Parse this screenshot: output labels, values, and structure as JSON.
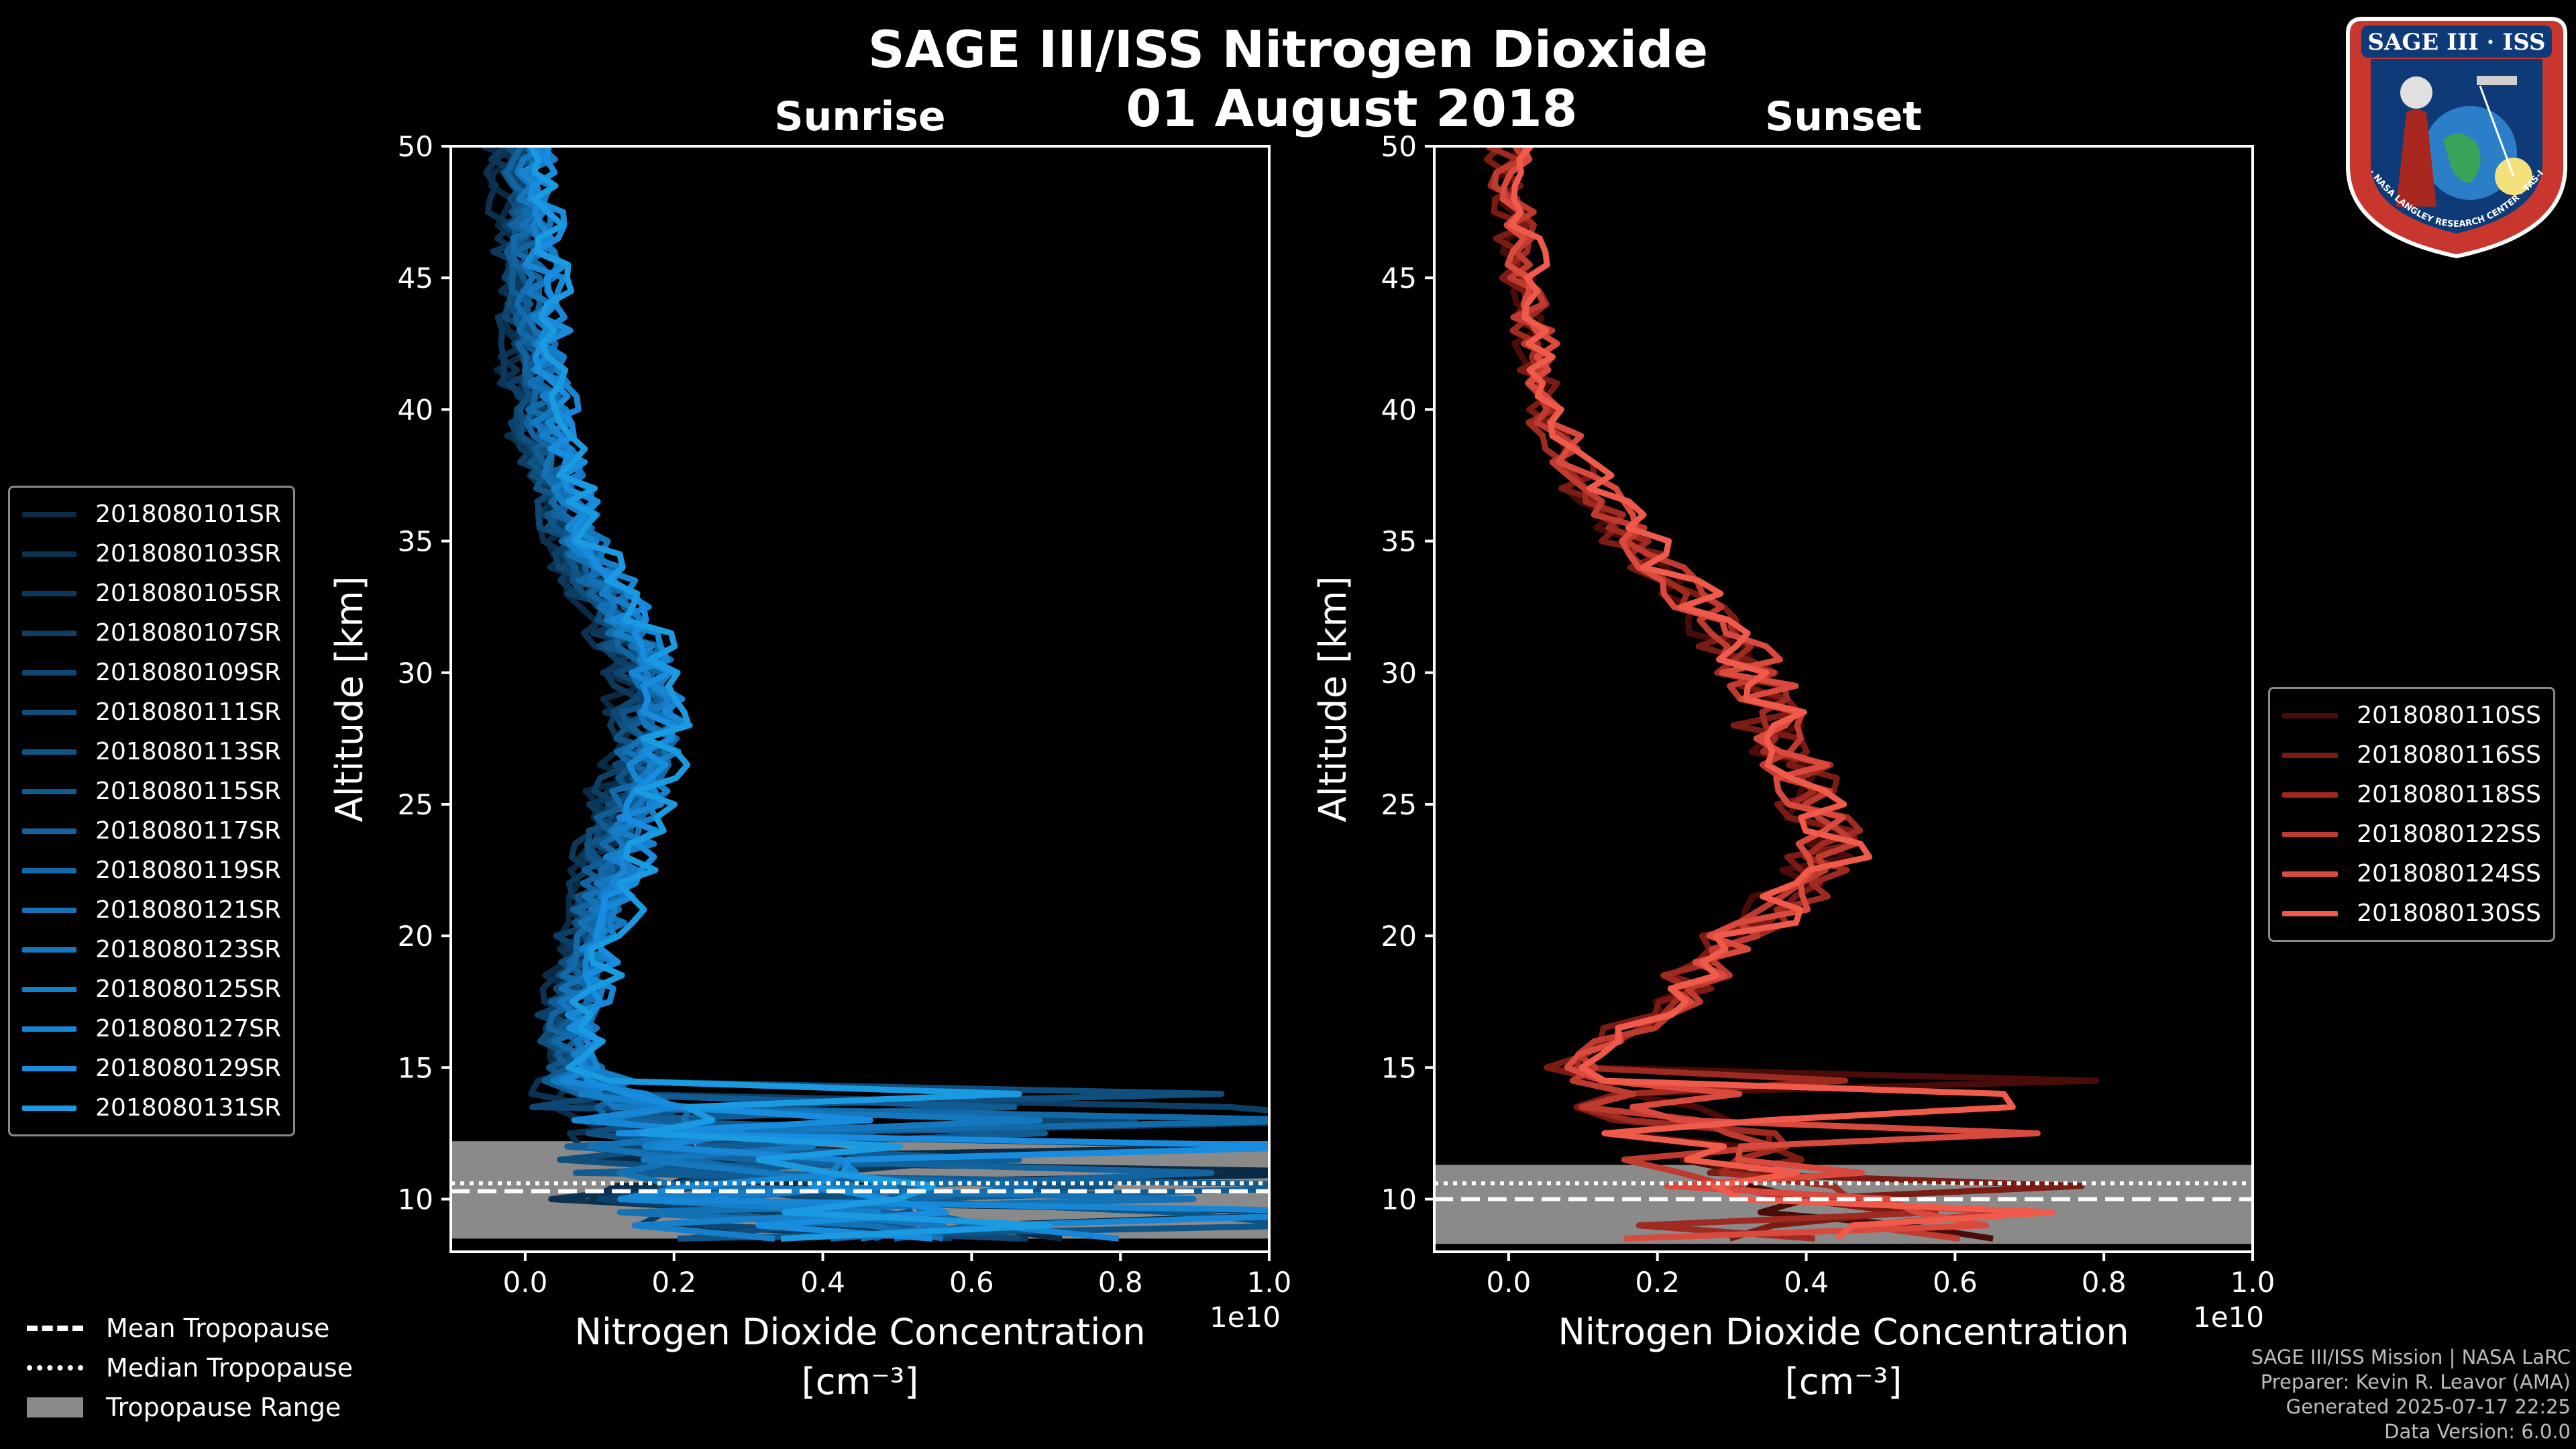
{
  "figure": {
    "title": "SAGE III/ISS Nitrogen Dioxide",
    "date": "01 August 2018"
  },
  "colors": {
    "sunrise": "#1a9ae0",
    "sunset": "#f05a4a",
    "background": "#000000",
    "tropopause_range": "#8a8a8a"
  },
  "chart_data": [
    {
      "type": "line",
      "panel": "left",
      "title": "Sunrise",
      "xlabel": "Nitrogen Dioxide Concentration",
      "xunit": "[cm⁻³]",
      "ylabel": "Altitude [km]",
      "x_offset_label": "1e10",
      "xlim": [
        -0.1,
        1.0
      ],
      "ylim": [
        8,
        50
      ],
      "xticks": [
        0.0,
        0.2,
        0.4,
        0.6,
        0.8,
        1.0
      ],
      "xtick_labels": [
        "0.0",
        "0.2",
        "0.4",
        "0.6",
        "0.8",
        "1.0"
      ],
      "yticks": [
        10,
        15,
        20,
        25,
        30,
        35,
        40,
        45,
        50
      ],
      "ytick_labels": [
        "10",
        "15",
        "20",
        "25",
        "30",
        "35",
        "40",
        "45",
        "50"
      ],
      "tropopause": {
        "mean": 10.3,
        "median": 10.6,
        "range": [
          8.5,
          12.2
        ]
      },
      "base_profile": {
        "altitude": [
          8.5,
          9,
          10,
          11,
          12,
          13,
          14,
          15,
          16,
          17,
          18,
          19,
          20,
          21,
          22,
          23,
          24,
          25,
          26,
          27,
          28,
          29,
          30,
          31,
          32,
          33,
          34,
          35,
          36,
          37,
          38,
          39,
          40,
          41,
          42,
          43,
          44,
          45,
          46,
          47,
          48,
          49,
          50
        ],
        "value": [
          0.45,
          0.35,
          0.25,
          0.22,
          0.18,
          0.12,
          0.08,
          0.06,
          0.06,
          0.06,
          0.07,
          0.08,
          0.09,
          0.1,
          0.11,
          0.12,
          0.13,
          0.14,
          0.15,
          0.16,
          0.17,
          0.17,
          0.16,
          0.15,
          0.13,
          0.11,
          0.09,
          0.07,
          0.06,
          0.05,
          0.04,
          0.03,
          0.025,
          0.02,
          0.015,
          0.012,
          0.01,
          0.008,
          0.005,
          0.004,
          0.002,
          0.0,
          0.0
        ]
      },
      "series": [
        {
          "name": "2018080101SR",
          "color": "#0a2b45"
        },
        {
          "name": "2018080103SR",
          "color": "#0b3250"
        },
        {
          "name": "2018080105SR",
          "color": "#0c395b"
        },
        {
          "name": "2018080107SR",
          "color": "#0d4066"
        },
        {
          "name": "2018080109SR",
          "color": "#0e4772"
        },
        {
          "name": "2018080111SR",
          "color": "#0f4e7d"
        },
        {
          "name": "2018080113SR",
          "color": "#105588"
        },
        {
          "name": "2018080115SR",
          "color": "#115c93"
        },
        {
          "name": "2018080117SR",
          "color": "#12639e"
        },
        {
          "name": "2018080119SR",
          "color": "#136aa9"
        },
        {
          "name": "2018080121SR",
          "color": "#1471b4"
        },
        {
          "name": "2018080123SR",
          "color": "#1578bf"
        },
        {
          "name": "2018080125SR",
          "color": "#167fca"
        },
        {
          "name": "2018080127SR",
          "color": "#1786d5"
        },
        {
          "name": "2018080129SR",
          "color": "#188ddf"
        },
        {
          "name": "2018080131SR",
          "color": "#1a9ae0"
        }
      ]
    },
    {
      "type": "line",
      "panel": "right",
      "title": "Sunset",
      "xlabel": "Nitrogen Dioxide Concentration",
      "xunit": "[cm⁻³]",
      "ylabel": "Altitude [km]",
      "x_offset_label": "1e10",
      "xlim": [
        -0.1,
        1.0
      ],
      "ylim": [
        8,
        50
      ],
      "xticks": [
        0.0,
        0.2,
        0.4,
        0.6,
        0.8,
        1.0
      ],
      "xtick_labels": [
        "0.0",
        "0.2",
        "0.4",
        "0.6",
        "0.8",
        "1.0"
      ],
      "yticks": [
        10,
        15,
        20,
        25,
        30,
        35,
        40,
        45,
        50
      ],
      "ytick_labels": [
        "10",
        "15",
        "20",
        "25",
        "30",
        "35",
        "40",
        "45",
        "50"
      ],
      "tropopause": {
        "mean": 10.0,
        "median": 10.6,
        "range": [
          8.3,
          11.3
        ]
      },
      "base_profile": {
        "altitude": [
          9,
          10,
          11,
          12,
          13,
          14,
          15,
          16,
          17,
          18,
          19,
          20,
          21,
          22,
          23,
          24,
          25,
          26,
          27,
          28,
          29,
          30,
          31,
          32,
          33,
          34,
          35,
          36,
          37,
          38,
          39,
          40,
          41,
          42,
          43,
          44,
          45,
          46,
          47,
          48,
          49,
          50
        ],
        "value": [
          0.35,
          0.3,
          0.28,
          0.25,
          0.2,
          0.12,
          0.08,
          0.13,
          0.2,
          0.24,
          0.27,
          0.3,
          0.36,
          0.41,
          0.43,
          0.43,
          0.42,
          0.4,
          0.38,
          0.36,
          0.35,
          0.33,
          0.3,
          0.27,
          0.24,
          0.2,
          0.17,
          0.14,
          0.11,
          0.09,
          0.07,
          0.05,
          0.045,
          0.04,
          0.035,
          0.03,
          0.02,
          0.02,
          0.015,
          0.01,
          0.0,
          0.0
        ]
      },
      "series": [
        {
          "name": "2018080110SS",
          "color": "#4a0c08"
        },
        {
          "name": "2018080116SS",
          "color": "#7a1b14"
        },
        {
          "name": "2018080118SS",
          "color": "#9e2a21"
        },
        {
          "name": "2018080122SS",
          "color": "#bf3a2f"
        },
        {
          "name": "2018080124SS",
          "color": "#d9493d"
        },
        {
          "name": "2018080130SS",
          "color": "#f05a4a"
        }
      ]
    }
  ],
  "tropopause_legend": {
    "mean": "Mean Tropopause",
    "median": "Median Tropopause",
    "range": "Tropopause Range"
  },
  "footer": {
    "line1": "SAGE III/ISS Mission | NASA LaRC",
    "line2": "Preparer: Kevin R. Leavor (AMA)",
    "line3": "Generated 2025-07-17 22:25",
    "line4": "Data Version: 6.0.0"
  },
  "logo": {
    "top_text": "SAGE III · ISS",
    "ring_text": "BALL · NASA LANGLEY RESEARCH CENTER · TAS-I · ESA"
  }
}
